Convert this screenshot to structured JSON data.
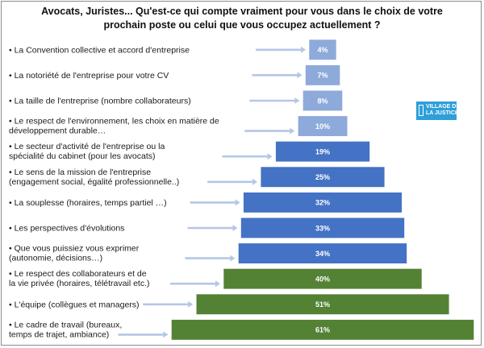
{
  "title": {
    "line1": "Avocats, Juristes... Qu'est-ce qui compte vraiment pour vous dans le choix de votre",
    "line2": "prochain poste ou celui que vous occupez actuellement ?"
  },
  "logo": {
    "line1": "VILLAGE DE",
    "line2": "LA JUSTICE"
  },
  "colors": {
    "light": "#8eaadb",
    "blue": "#4472c4",
    "green": "#548235",
    "arrow": "#b4c7e7"
  },
  "chart_data": {
    "type": "bar",
    "orientation": "horizontal-funnel",
    "categories": [
      "• La Convention collective et accord d'entreprise",
      "• La notoriété de l'entreprise pour votre CV",
      "• La taille de l'entreprise (nombre collaborateurs)",
      "• Le respect de l'environnement, les choix en matière de développement durable…",
      "• Le secteur d'activité de l'entreprise ou la spécialité du cabinet (pour les avocats)",
      "• Le sens de la mission de l'entreprise (engagement social, égalité professionnelle..)",
      "• La souplesse (horaires, temps partiel …)",
      "• Les perspectives d'évolutions",
      "• Que vous puissiez vous exprimer (autonomie, décisions…)",
      "• Le respect des collaborateurs et de la vie privée (horaires, télétravail etc.)",
      "• L'équipe (collègues et managers)",
      "• Le cadre de travail (bureaux, temps de trajet, ambiance)"
    ],
    "label_lines": [
      [
        "• La Convention collective et accord d'entreprise"
      ],
      [
        "• La notoriété de l'entreprise pour votre CV"
      ],
      [
        "• La taille de l'entreprise (nombre collaborateurs)"
      ],
      [
        "• Le respect de l'environnement, les choix en matière de",
        "développement durable…"
      ],
      [
        "• Le secteur d'activité de l'entreprise ou la",
        "spécialité du cabinet (pour les avocats)"
      ],
      [
        "• Le sens de la mission de l'entreprise",
        "(engagement social, égalité professionnelle..)"
      ],
      [
        "• La souplesse (horaires, temps partiel …)"
      ],
      [
        "• Les perspectives d'évolutions"
      ],
      [
        "• Que vous puissiez vous exprimer",
        "(autonomie, décisions…)"
      ],
      [
        "• Le respect des collaborateurs et de",
        "la vie privée (horaires, télétravail etc.)"
      ],
      [
        "• L'équipe (collègues et managers)"
      ],
      [
        "• Le cadre de travail (bureaux,",
        "temps de trajet, ambiance)"
      ]
    ],
    "values": [
      4,
      7,
      8,
      10,
      19,
      25,
      32,
      33,
      34,
      40,
      51,
      61
    ],
    "value_labels": [
      "4%",
      "7%",
      "8%",
      "10%",
      "19%",
      "25%",
      "32%",
      "33%",
      "34%",
      "40%",
      "51%",
      "61%"
    ],
    "color_groups": [
      "light",
      "light",
      "light",
      "light",
      "blue",
      "blue",
      "blue",
      "blue",
      "blue",
      "green",
      "green",
      "green"
    ]
  }
}
